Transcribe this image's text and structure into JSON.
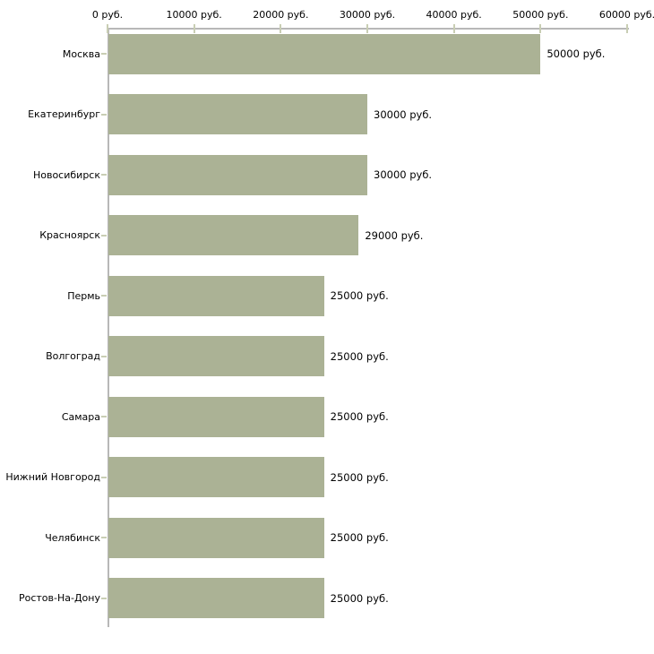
{
  "chart_data": {
    "type": "bar",
    "orientation": "horizontal",
    "title": "",
    "xlabel": "",
    "ylabel": "",
    "grid": false,
    "legend": false,
    "xlim": [
      0,
      60000
    ],
    "categories": [
      "Москва",
      "Екатеринбург",
      "Новосибирск",
      "Красноярск",
      "Пермь",
      "Волгоград",
      "Самара",
      "Нижний Новгород",
      "Челябинск",
      "Ростов-На-Дону"
    ],
    "values": [
      50000,
      30000,
      30000,
      29000,
      25000,
      25000,
      25000,
      25000,
      25000,
      25000
    ],
    "value_labels": [
      "50000 руб.",
      "30000 руб.",
      "30000 руб.",
      "29000 руб.",
      "25000 руб.",
      "25000 руб.",
      "25000 руб.",
      "25000 руб.",
      "25000 руб.",
      "25000 руб."
    ],
    "x_ticks": [
      {
        "value": 0,
        "label": "0 руб."
      },
      {
        "value": 10000,
        "label": "10000 руб."
      },
      {
        "value": 20000,
        "label": "20000 руб."
      },
      {
        "value": 30000,
        "label": "30000 руб."
      },
      {
        "value": 40000,
        "label": "40000 руб."
      },
      {
        "value": 50000,
        "label": "50000 руб."
      },
      {
        "value": 60000,
        "label": "60000 руб."
      }
    ],
    "colors": {
      "bar": "#abb295",
      "axis_line": "#b8b8b8",
      "tick_mark": "#c9ceb4",
      "text": "#000000",
      "background": "#ffffff"
    }
  }
}
